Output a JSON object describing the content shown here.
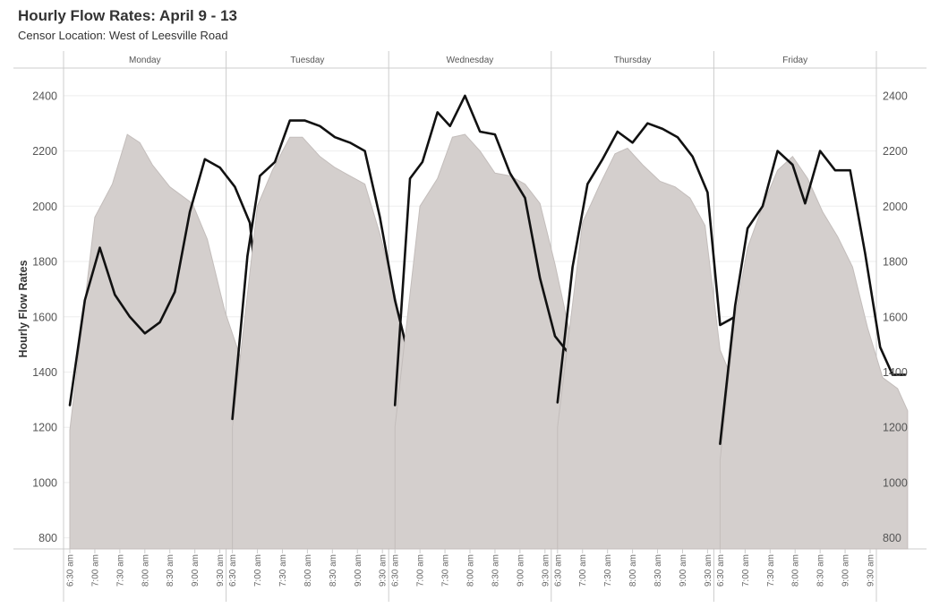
{
  "title": "Hourly Flow Rates: April 9 - 13",
  "subtitle": "Censor Location: West of Leesville Road",
  "colors": {
    "area_fill": "#d4cfcd",
    "area_stroke": "#c3bdbb",
    "line": "#111111",
    "grid": "#eeeeee",
    "axis": "#cccccc"
  },
  "chart_data": {
    "type": "area",
    "ylabel": "Hourly Flow Rates",
    "ylim": [
      760,
      2500
    ],
    "yticks": [
      800,
      1000,
      1200,
      1400,
      1600,
      1800,
      2000,
      2200,
      2400
    ],
    "x_tick_labels": [
      "6:30 am",
      "7:00 am",
      "7:30 am",
      "8:00 am",
      "8:30 am",
      "9:00 am",
      "9:30 am"
    ],
    "x_range": [
      "6:30 am",
      "9:30 am"
    ],
    "panels": [
      {
        "name": "Monday",
        "area": [
          [
            0,
            1190
          ],
          [
            0.5,
            1960
          ],
          [
            0.85,
            2080
          ],
          [
            1.15,
            2260
          ],
          [
            1.4,
            2230
          ],
          [
            1.65,
            2150
          ],
          [
            2.0,
            2070
          ],
          [
            2.45,
            2010
          ],
          [
            2.75,
            1880
          ],
          [
            3.1,
            1620
          ],
          [
            3.4,
            1460
          ],
          [
            3.65,
            1360
          ]
        ],
        "line": [
          [
            0,
            1280
          ],
          [
            0.3,
            1660
          ],
          [
            0.6,
            1850
          ],
          [
            0.9,
            1680
          ],
          [
            1.2,
            1600
          ],
          [
            1.5,
            1540
          ],
          [
            1.8,
            1580
          ],
          [
            2.1,
            1690
          ],
          [
            2.4,
            1980
          ],
          [
            2.7,
            2170
          ],
          [
            3.0,
            2140
          ],
          [
            3.3,
            2070
          ],
          [
            3.6,
            1940
          ],
          [
            3.9,
            1420
          ]
        ]
      },
      {
        "name": "Tuesday",
        "area": [
          [
            0,
            1200
          ],
          [
            0.5,
            2000
          ],
          [
            0.8,
            2130
          ],
          [
            1.15,
            2250
          ],
          [
            1.4,
            2250
          ],
          [
            1.75,
            2180
          ],
          [
            2.05,
            2140
          ],
          [
            2.35,
            2110
          ],
          [
            2.65,
            2080
          ],
          [
            2.95,
            1900
          ],
          [
            3.25,
            1680
          ],
          [
            3.5,
            1450
          ],
          [
            3.7,
            1420
          ]
        ],
        "line": [
          [
            0,
            1230
          ],
          [
            0.3,
            1820
          ],
          [
            0.55,
            2110
          ],
          [
            0.85,
            2160
          ],
          [
            1.15,
            2310
          ],
          [
            1.45,
            2310
          ],
          [
            1.75,
            2290
          ],
          [
            2.05,
            2250
          ],
          [
            2.35,
            2230
          ],
          [
            2.65,
            2200
          ],
          [
            2.95,
            1960
          ],
          [
            3.25,
            1660
          ],
          [
            3.55,
            1440
          ],
          [
            3.85,
            1430
          ]
        ]
      },
      {
        "name": "Wednesday",
        "area": [
          [
            0,
            1200
          ],
          [
            0.5,
            2000
          ],
          [
            0.85,
            2100
          ],
          [
            1.15,
            2250
          ],
          [
            1.4,
            2260
          ],
          [
            1.7,
            2200
          ],
          [
            2.0,
            2120
          ],
          [
            2.3,
            2110
          ],
          [
            2.6,
            2080
          ],
          [
            2.9,
            2010
          ],
          [
            3.2,
            1790
          ],
          [
            3.5,
            1540
          ],
          [
            3.7,
            1370
          ]
        ],
        "line": [
          [
            0,
            1280
          ],
          [
            0.3,
            2100
          ],
          [
            0.55,
            2160
          ],
          [
            0.85,
            2340
          ],
          [
            1.1,
            2290
          ],
          [
            1.4,
            2400
          ],
          [
            1.7,
            2270
          ],
          [
            2.0,
            2260
          ],
          [
            2.3,
            2120
          ],
          [
            2.6,
            2030
          ],
          [
            2.9,
            1740
          ],
          [
            3.2,
            1530
          ],
          [
            3.55,
            1450
          ]
        ]
      },
      {
        "name": "Thursday",
        "area": [
          [
            0,
            1200
          ],
          [
            0.5,
            1940
          ],
          [
            0.85,
            2080
          ],
          [
            1.15,
            2190
          ],
          [
            1.4,
            2210
          ],
          [
            1.7,
            2150
          ],
          [
            2.05,
            2090
          ],
          [
            2.35,
            2070
          ],
          [
            2.65,
            2030
          ],
          [
            2.95,
            1930
          ],
          [
            3.25,
            1480
          ],
          [
            3.55,
            1350
          ]
        ],
        "line": [
          [
            0,
            1290
          ],
          [
            0.3,
            1780
          ],
          [
            0.6,
            2080
          ],
          [
            0.9,
            2170
          ],
          [
            1.2,
            2270
          ],
          [
            1.5,
            2230
          ],
          [
            1.8,
            2300
          ],
          [
            2.1,
            2280
          ],
          [
            2.4,
            2250
          ],
          [
            2.7,
            2180
          ],
          [
            3.0,
            2050
          ],
          [
            3.25,
            1570
          ],
          [
            3.55,
            1600
          ],
          [
            3.8,
            1450
          ]
        ]
      },
      {
        "name": "Friday",
        "area": [
          [
            0,
            1080
          ],
          [
            0.3,
            1600
          ],
          [
            0.55,
            1850
          ],
          [
            0.85,
            2000
          ],
          [
            1.15,
            2130
          ],
          [
            1.45,
            2180
          ],
          [
            1.75,
            2100
          ],
          [
            2.05,
            1980
          ],
          [
            2.35,
            1890
          ],
          [
            2.65,
            1780
          ],
          [
            2.95,
            1560
          ],
          [
            3.25,
            1380
          ],
          [
            3.55,
            1340
          ],
          [
            3.75,
            1260
          ]
        ],
        "line": [
          [
            0,
            1140
          ],
          [
            0.3,
            1640
          ],
          [
            0.55,
            1920
          ],
          [
            0.85,
            2000
          ],
          [
            1.15,
            2200
          ],
          [
            1.45,
            2150
          ],
          [
            1.7,
            2010
          ],
          [
            2.0,
            2200
          ],
          [
            2.3,
            2130
          ],
          [
            2.6,
            2130
          ],
          [
            2.9,
            1830
          ],
          [
            3.2,
            1490
          ],
          [
            3.45,
            1390
          ],
          [
            3.7,
            1390
          ]
        ]
      }
    ]
  }
}
